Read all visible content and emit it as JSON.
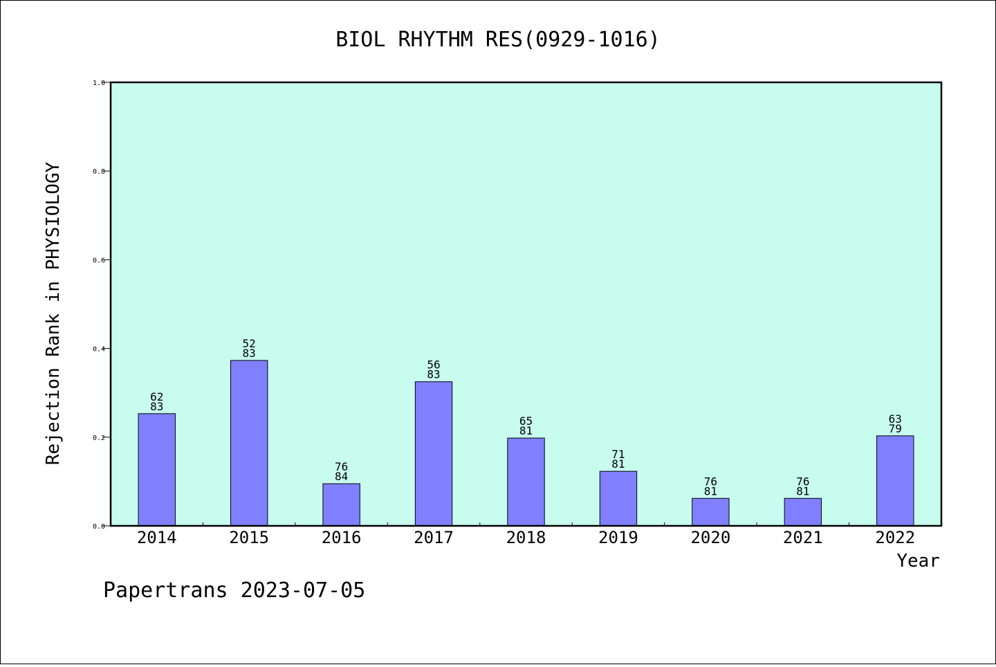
{
  "chart_data": {
    "type": "bar",
    "title": "BIOL RHYTHM RES(0929-1016)",
    "xlabel": "Year",
    "ylabel": "Rejection Rank in PHYSIOLOGY",
    "ylim": [
      0,
      1.0
    ],
    "yticks": [
      "0.0",
      "0.2",
      "0.4",
      "0.6",
      "0.8",
      "1.0"
    ],
    "categories": [
      "2014",
      "2015",
      "2016",
      "2017",
      "2018",
      "2019",
      "2020",
      "2021",
      "2022"
    ],
    "values": [
      0.253,
      0.373,
      0.095,
      0.325,
      0.198,
      0.123,
      0.062,
      0.062,
      0.203
    ],
    "label_top": [
      "62",
      "52",
      "76",
      "56",
      "65",
      "71",
      "76",
      "76",
      "63"
    ],
    "label_bottom": [
      "83",
      "83",
      "84",
      "83",
      "81",
      "81",
      "81",
      "81",
      "79"
    ],
    "grid": false,
    "colors": {
      "plot_bg": "#c8fcef",
      "bar": "#8080ff",
      "bar_edge": "#000000"
    }
  },
  "footer": {
    "text": "Papertrans 2023-07-05"
  }
}
